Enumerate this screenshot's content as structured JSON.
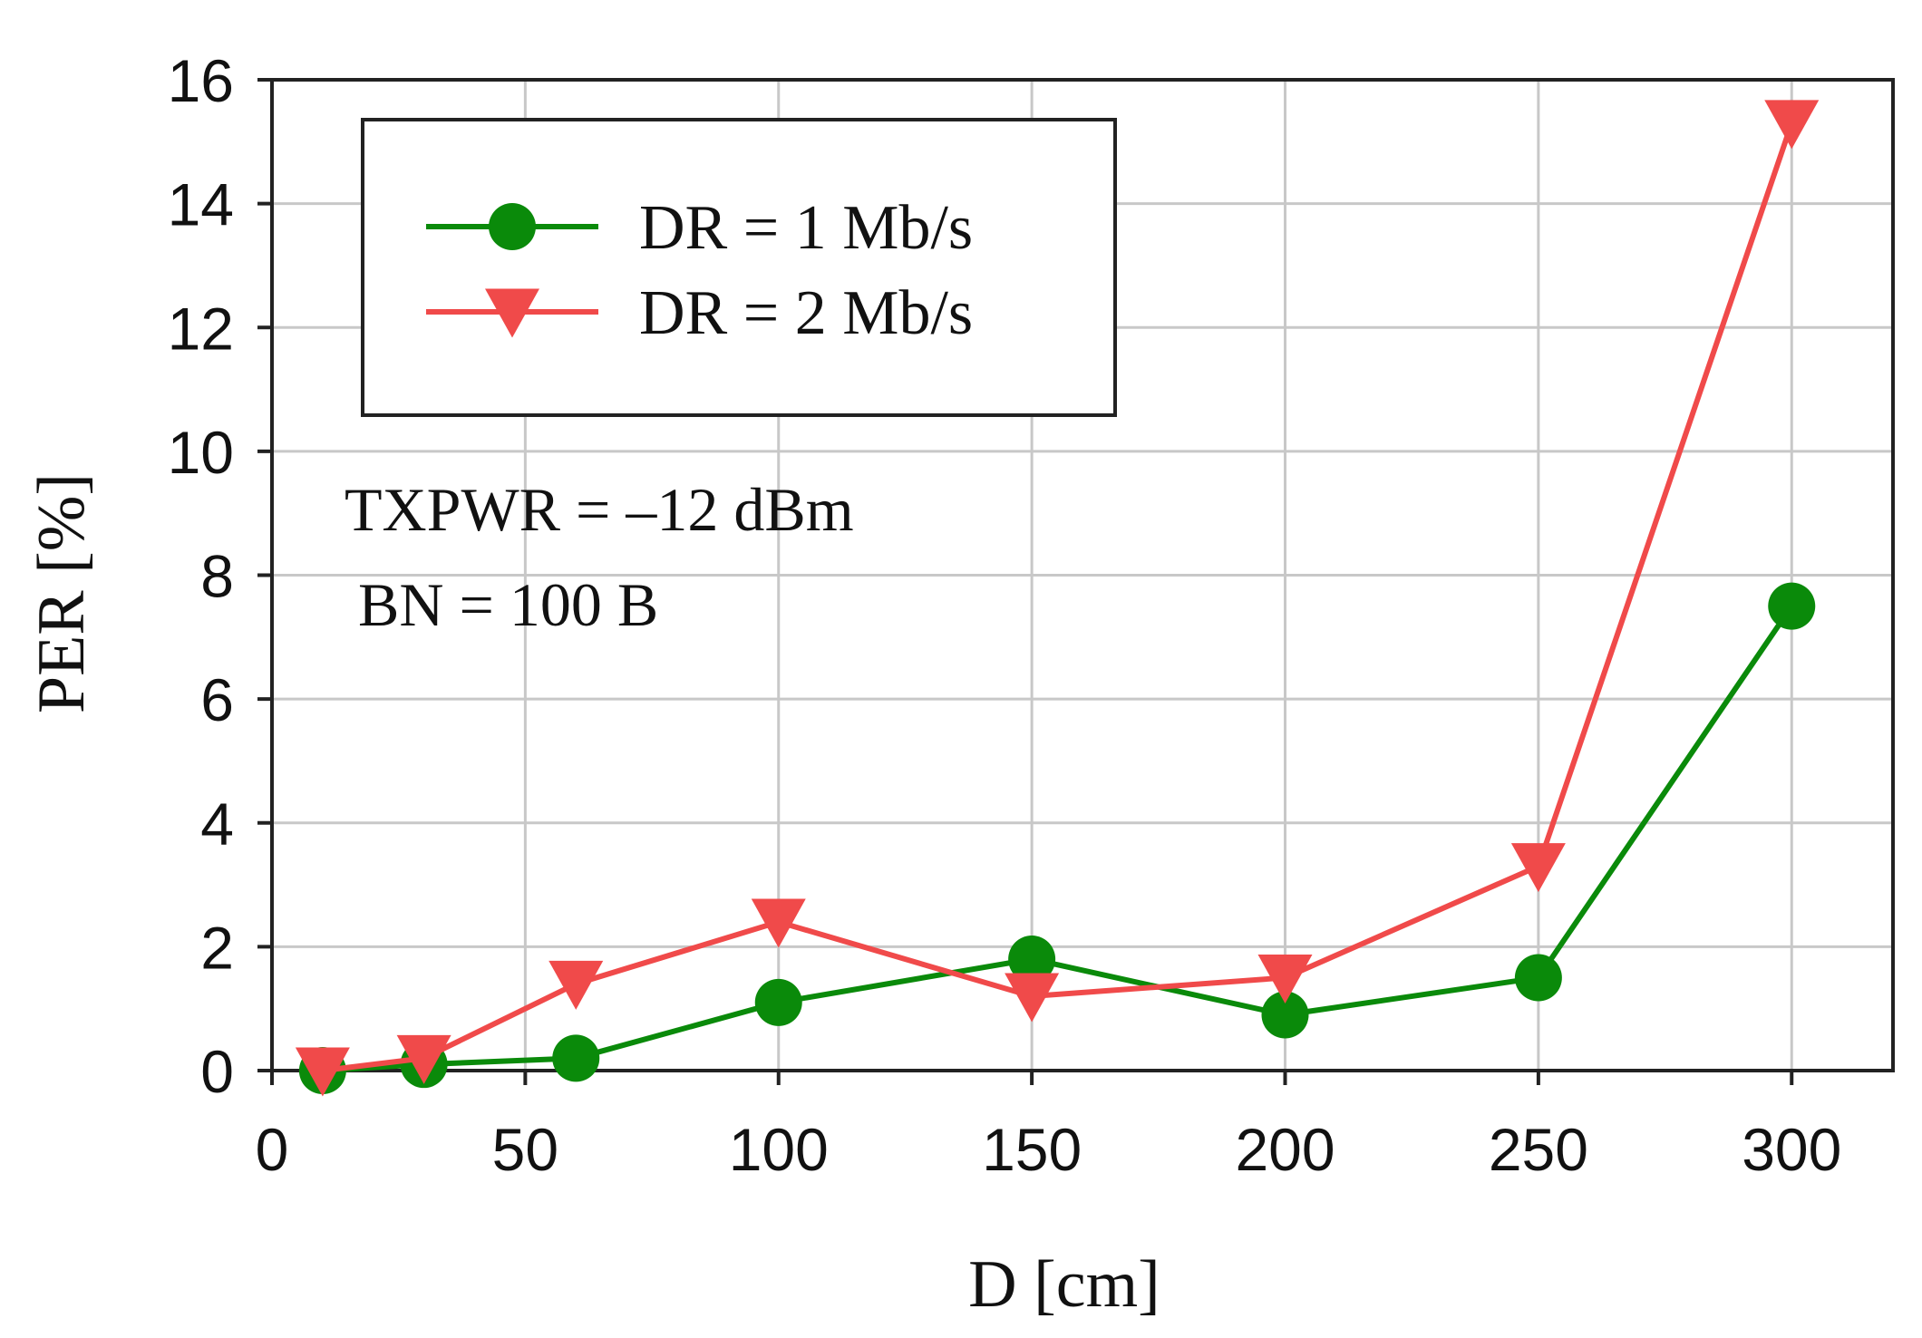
{
  "chart_data": {
    "type": "line",
    "title": "",
    "xlabel": "D [cm]",
    "ylabel": "PER [%]",
    "xlim": [
      0,
      320
    ],
    "ylim": [
      0,
      16
    ],
    "xticks": [
      0,
      50,
      100,
      150,
      200,
      250,
      300
    ],
    "yticks": [
      0,
      2,
      4,
      6,
      8,
      10,
      12,
      14,
      16
    ],
    "grid": true,
    "legend_position": "top-left",
    "x": [
      10,
      30,
      60,
      100,
      150,
      200,
      250,
      300
    ],
    "series": [
      {
        "name": "DR = 1 Mb/s",
        "color": "#0a8a0a",
        "marker": "circle",
        "values": [
          0.0,
          0.1,
          0.2,
          1.1,
          1.8,
          0.9,
          1.5,
          7.5
        ]
      },
      {
        "name": "DR = 2 Mb/s",
        "color": "#f04a4a",
        "marker": "triangle-down",
        "values": [
          0.0,
          0.2,
          1.4,
          2.4,
          1.2,
          1.5,
          3.3,
          15.3
        ]
      }
    ],
    "annotations": [
      "TXPWR = –12 dBm",
      "BN = 100 B"
    ]
  }
}
